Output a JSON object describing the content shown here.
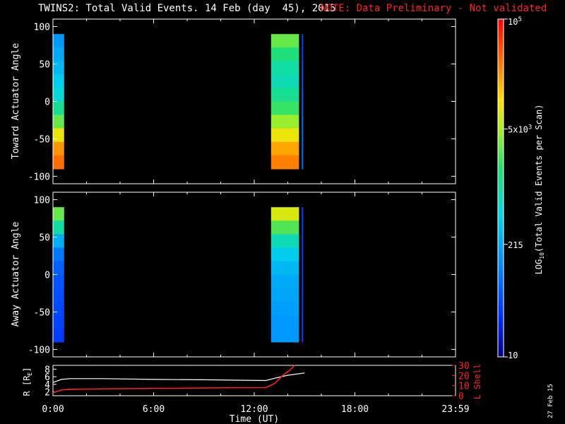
{
  "header": {
    "title": "TWINS2: Total Valid Events. 14 Feb (day  45), 2015",
    "note": "NOTE: Data Preliminary - Not validated"
  },
  "colors": {
    "note": "#ff2020",
    "l_shell": "#ff2020",
    "r_line": "#ffffff"
  },
  "footer": {
    "date_stamp": "27 Feb 15"
  },
  "colorbar": {
    "label_prefix": "LOG",
    "label_sub": "10",
    "label_rest": "(Total Valid  Events per Scan)",
    "ticks": [
      {
        "base": "10",
        "exp": "5",
        "value": 100000
      },
      {
        "base": "5x10",
        "exp": "3",
        "value": 5000
      },
      {
        "base": "215",
        "exp": "",
        "value": 215
      },
      {
        "base": "10",
        "exp": "",
        "value": 10
      }
    ]
  },
  "chart_data": [
    {
      "type": "heatmap",
      "name": "toward",
      "ylabel": "Toward Actuator Angle",
      "ylim": [
        -110,
        110
      ],
      "yticks": [
        "100",
        "50",
        "0",
        "-50",
        "-100"
      ],
      "xlim_hours": [
        0,
        24
      ],
      "blocks": [
        {
          "start_time": "0:00",
          "end_time": "0:40",
          "levels": [
            0.3,
            0.33,
            0.36,
            0.4,
            0.44,
            0.52,
            0.62,
            0.74,
            0.84,
            0.88
          ]
        },
        {
          "start_time": "13:00",
          "end_time": "14:40",
          "levels": [
            0.62,
            0.55,
            0.5,
            0.48,
            0.52,
            0.58,
            0.66,
            0.74,
            0.82,
            0.86
          ]
        },
        {
          "start_time": "14:50",
          "end_time": "14:55",
          "levels": [
            0.15,
            0.15,
            0.18,
            0.18,
            0.2,
            0.2,
            0.22,
            0.22,
            0.22,
            0.22
          ]
        }
      ]
    },
    {
      "type": "heatmap",
      "name": "away",
      "ylabel": "Away Actuator Angle",
      "ylim": [
        -110,
        110
      ],
      "yticks": [
        "100",
        "50",
        "0",
        "-50",
        "-100"
      ],
      "xlim_hours": [
        0,
        24
      ],
      "blocks": [
        {
          "start_time": "0:00",
          "end_time": "0:40",
          "levels": [
            0.62,
            0.5,
            0.34,
            0.24,
            0.2,
            0.18,
            0.17,
            0.16,
            0.15,
            0.14
          ]
        },
        {
          "start_time": "13:00",
          "end_time": "14:40",
          "levels": [
            0.72,
            0.6,
            0.48,
            0.4,
            0.36,
            0.33,
            0.32,
            0.31,
            0.3,
            0.3
          ]
        },
        {
          "start_time": "14:50",
          "end_time": "14:55",
          "levels": [
            0.15,
            0.15,
            0.15,
            0.15,
            0.15,
            0.15,
            0.15,
            0.15,
            0.15,
            0.15
          ]
        }
      ]
    },
    {
      "type": "line",
      "name": "orbit",
      "ylabel_left": "R [R",
      "ylabel_left_sub": "E",
      "ylabel_left_end": "]",
      "ylabel_right": "L Shell",
      "ylim_left": [
        1,
        9
      ],
      "ylim_right": [
        0,
        30
      ],
      "yticks_left": [
        "8",
        "6",
        "4",
        "2"
      ],
      "yticks_right": [
        "30",
        "20",
        "10",
        "0"
      ],
      "xlabel": "Time (UT)",
      "xticks": [
        "0:00",
        "6:00",
        "12:00",
        "18:00",
        "23:59"
      ],
      "series": [
        {
          "axis": "left",
          "x": [
            0,
            0.5,
            1,
            3,
            6,
            9,
            11,
            12.7,
            13.2,
            14,
            15
          ],
          "y": [
            4.5,
            5.3,
            5.5,
            5.5,
            5.3,
            5.2,
            5.1,
            5.0,
            5.6,
            6.4,
            7.0
          ]
        },
        {
          "axis": "right",
          "x": [
            0,
            0.6,
            1.5,
            4,
            8,
            11,
            12.7,
            13.2,
            13.7,
            14.1,
            14.4
          ],
          "y": [
            3,
            6,
            6.5,
            7,
            7.5,
            8,
            8,
            12,
            20,
            25,
            30
          ]
        }
      ]
    }
  ]
}
